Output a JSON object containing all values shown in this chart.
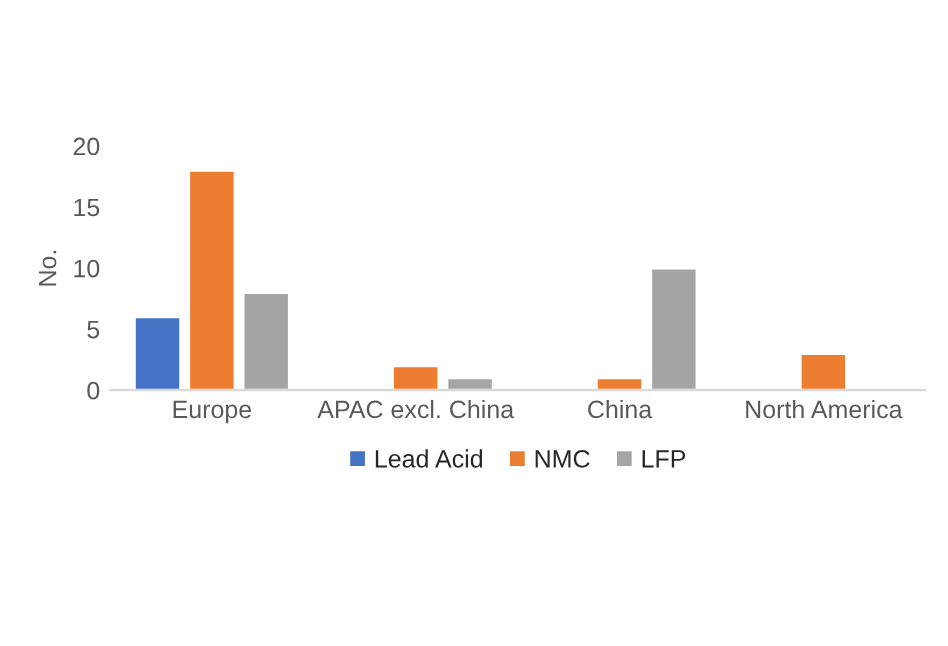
{
  "chart_data": {
    "type": "bar",
    "ylabel": "No.",
    "categories": [
      "Europe",
      "APAC excl. China",
      "China",
      "North America"
    ],
    "series": [
      {
        "name": "Lead Acid",
        "color": "#4472c4",
        "values": [
          6,
          null,
          null,
          null
        ]
      },
      {
        "name": "NMC",
        "color": "#ed7d31",
        "values": [
          18,
          2,
          1,
          3
        ]
      },
      {
        "name": "LFP",
        "color": "#a5a5a5",
        "values": [
          8,
          1,
          10,
          null
        ]
      }
    ],
    "ylim": [
      0,
      20
    ],
    "yticks": [
      0,
      5,
      10,
      15,
      20
    ],
    "grid": false,
    "legend": "bottom"
  }
}
